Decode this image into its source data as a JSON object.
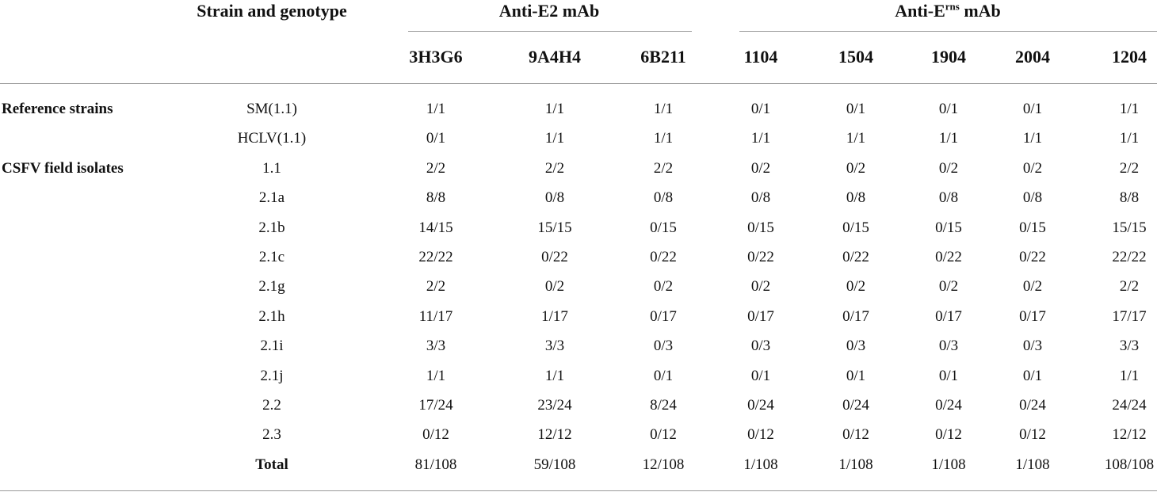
{
  "table": {
    "header": {
      "strain": "Strain and genotype",
      "groups": [
        {
          "text": "Anti-E2 mAb"
        },
        {
          "prefix": "Anti-E",
          "sup": "rns",
          "suffix": " mAb"
        }
      ],
      "columns": [
        "3H3G6",
        "9A4H4",
        "6B211",
        "1104",
        "1504",
        "1904",
        "2004",
        "1204"
      ]
    },
    "rows": [
      {
        "group": "Reference strains",
        "strain": "SM(1.1)",
        "values": [
          "1/1",
          "1/1",
          "1/1",
          "0/1",
          "0/1",
          "0/1",
          "0/1",
          "1/1"
        ]
      },
      {
        "strain": "HCLV(1.1)",
        "values": [
          "0/1",
          "1/1",
          "1/1",
          "1/1",
          "1/1",
          "1/1",
          "1/1",
          "1/1"
        ]
      },
      {
        "group": "CSFV field isolates",
        "strain": "1.1",
        "values": [
          "2/2",
          "2/2",
          "2/2",
          "0/2",
          "0/2",
          "0/2",
          "0/2",
          "2/2"
        ]
      },
      {
        "strain": "2.1a",
        "values": [
          "8/8",
          "0/8",
          "0/8",
          "0/8",
          "0/8",
          "0/8",
          "0/8",
          "8/8"
        ]
      },
      {
        "strain": "2.1b",
        "values": [
          "14/15",
          "15/15",
          "0/15",
          "0/15",
          "0/15",
          "0/15",
          "0/15",
          "15/15"
        ]
      },
      {
        "strain": "2.1c",
        "values": [
          "22/22",
          "0/22",
          "0/22",
          "0/22",
          "0/22",
          "0/22",
          "0/22",
          "22/22"
        ]
      },
      {
        "strain": "2.1g",
        "values": [
          "2/2",
          "0/2",
          "0/2",
          "0/2",
          "0/2",
          "0/2",
          "0/2",
          "2/2"
        ]
      },
      {
        "strain": "2.1h",
        "values": [
          "11/17",
          "1/17",
          "0/17",
          "0/17",
          "0/17",
          "0/17",
          "0/17",
          "17/17"
        ]
      },
      {
        "strain": "2.1i",
        "values": [
          "3/3",
          "3/3",
          "0/3",
          "0/3",
          "0/3",
          "0/3",
          "0/3",
          "3/3"
        ]
      },
      {
        "strain": "2.1j",
        "values": [
          "1/1",
          "1/1",
          "0/1",
          "0/1",
          "0/1",
          "0/1",
          "0/1",
          "1/1"
        ]
      },
      {
        "strain": "2.2",
        "values": [
          "17/24",
          "23/24",
          "8/24",
          "0/24",
          "0/24",
          "0/24",
          "0/24",
          "24/24"
        ]
      },
      {
        "strain": "2.3",
        "values": [
          "0/12",
          "12/12",
          "0/12",
          "0/12",
          "0/12",
          "0/12",
          "0/12",
          "12/12"
        ]
      },
      {
        "strain": "Total",
        "values": [
          "81/108",
          "59/108",
          "12/108",
          "1/108",
          "1/108",
          "1/108",
          "1/108",
          "108/108"
        ]
      }
    ]
  }
}
